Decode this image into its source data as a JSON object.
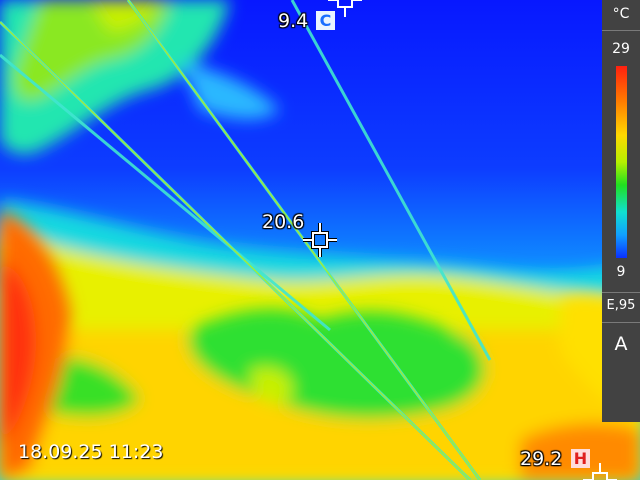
{
  "measurements": {
    "cold": {
      "value": "9.4",
      "badge": "C"
    },
    "center": {
      "value": "20.6"
    },
    "hot": {
      "value": "29.2",
      "badge": "H"
    }
  },
  "scale": {
    "unit": "°C",
    "max": "29",
    "min": "9",
    "emissivity": "E,95",
    "mode": "A"
  },
  "timestamp": "18.09.25 11:23",
  "colors": {
    "scale_panel": "#424242",
    "cold_badge": "#1a6fff",
    "hot_badge": "#e01e1e"
  }
}
